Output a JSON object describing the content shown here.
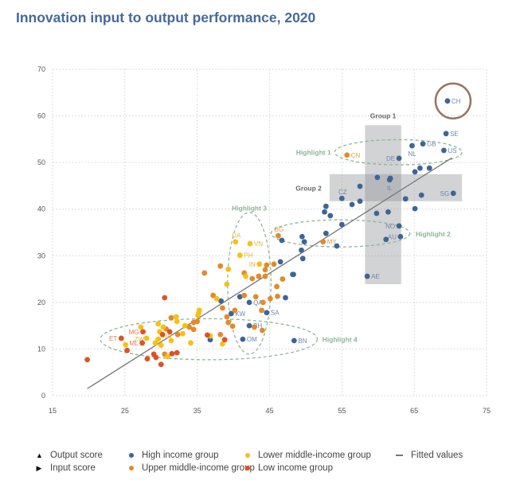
{
  "chart_data": {
    "type": "scatter",
    "title": "Innovation input to output performance, 2020",
    "xlabel": "",
    "ylabel": "",
    "xlim": [
      15,
      75
    ],
    "ylim": [
      0,
      70
    ],
    "x_ticks": [
      "15",
      "25",
      "35",
      "45",
      "55",
      "65",
      "75"
    ],
    "y_ticks": [
      "0",
      "10",
      "20",
      "30",
      "40",
      "50",
      "60",
      "70"
    ],
    "grid": true,
    "legend_placement": "bottom",
    "colors": {
      "high": "#3d6598",
      "upper": "#e38a2a",
      "lower": "#f6c015",
      "low": "#dc5326",
      "fit": "#777777",
      "highlight": "#8db697",
      "group": "#8e9096",
      "circle": "#9a7560"
    },
    "fitted_line": [
      [
        19.8,
        1.5
      ],
      [
        70.2,
        51.0
      ]
    ],
    "series": [
      {
        "name": "High income group",
        "key": "high",
        "points": [
          [
            69.6,
            63.2,
            "CH"
          ],
          [
            69.4,
            56.2,
            "SE"
          ],
          [
            66.2,
            54.0,
            "GB"
          ],
          [
            69.1,
            52.6,
            "US"
          ],
          [
            64.7,
            53.6,
            "NL"
          ],
          [
            62.9,
            50.9,
            "DE"
          ],
          [
            65.1,
            48.0
          ],
          [
            65.8,
            48.8
          ],
          [
            67.1,
            48.8
          ],
          [
            59.9,
            46.8
          ],
          [
            61.7,
            46.6
          ],
          [
            61.6,
            46.3,
            "IL"
          ],
          [
            57.5,
            44.9
          ],
          [
            55.0,
            42.3,
            "CZ"
          ],
          [
            56.4,
            41.0
          ],
          [
            57.5,
            41.7
          ],
          [
            63.8,
            42.2
          ],
          [
            66.0,
            43.0
          ],
          [
            70.4,
            43.4,
            "SG"
          ],
          [
            65.1,
            40.1
          ],
          [
            59.8,
            39.1
          ],
          [
            61.4,
            39.4
          ],
          [
            52.8,
            40.6
          ],
          [
            52.6,
            39.4
          ],
          [
            53.4,
            38.6
          ],
          [
            55.0,
            36.7
          ],
          [
            62.9,
            36.4,
            "NO"
          ],
          [
            63.1,
            34.1,
            "AU"
          ],
          [
            61.1,
            33.5
          ],
          [
            46.7,
            33.3
          ],
          [
            49.5,
            34.1
          ],
          [
            49.8,
            33.0
          ],
          [
            52.8,
            34.8
          ],
          [
            54.3,
            32.1
          ],
          [
            49.4,
            31.2
          ],
          [
            49.6,
            29.4
          ],
          [
            46.5,
            28.7
          ],
          [
            48.3,
            26.0
          ],
          [
            58.5,
            25.6,
            "AE"
          ],
          [
            48.2,
            26.0
          ],
          [
            38.3,
            20.3
          ],
          [
            40.9,
            21.2
          ],
          [
            47.2,
            21.0
          ],
          [
            42.2,
            20.0,
            "QA"
          ],
          [
            39.7,
            17.6,
            "KW"
          ],
          [
            44.6,
            17.8,
            "SA"
          ],
          [
            42.2,
            15.0,
            "BH"
          ],
          [
            41.3,
            12.1,
            "OM"
          ],
          [
            48.4,
            11.8,
            "BN"
          ],
          [
            36.8,
            12.0
          ]
        ]
      },
      {
        "name": "Upper middle-income group",
        "key": "upper",
        "points": [
          [
            55.7,
            51.6,
            "CN"
          ],
          [
            46.2,
            34.3,
            "BG"
          ],
          [
            52.4,
            33.0,
            "MY"
          ],
          [
            44.6,
            28.0
          ],
          [
            45.6,
            28.2
          ],
          [
            44.4,
            27.0
          ],
          [
            44.4,
            25.6
          ],
          [
            46.8,
            25.0
          ],
          [
            46.0,
            23.4
          ],
          [
            38.2,
            27.8
          ],
          [
            36.0,
            26.3
          ],
          [
            41.5,
            26.3
          ],
          [
            42.6,
            25.1
          ],
          [
            43.5,
            25.6
          ],
          [
            37.2,
            21.5
          ],
          [
            41.5,
            21.5
          ],
          [
            43.1,
            21.2
          ],
          [
            45.1,
            20.8
          ],
          [
            46.1,
            21.3
          ],
          [
            44.1,
            20.0
          ],
          [
            38.5,
            18.8
          ],
          [
            40.2,
            18.3
          ],
          [
            43.9,
            18.3
          ],
          [
            39.1,
            16.9
          ],
          [
            39.3,
            15.7
          ],
          [
            39.9,
            14.9
          ],
          [
            42.9,
            14.7
          ],
          [
            44.0,
            14.0
          ],
          [
            38.2,
            13.1
          ],
          [
            31.4,
            16.7
          ],
          [
            33.9,
            14.7
          ],
          [
            34.5,
            15.7
          ],
          [
            35.0,
            15.9
          ],
          [
            34.5,
            14.2
          ],
          [
            30.7,
            14.3
          ],
          [
            32.3,
            13.1
          ],
          [
            30.5,
            8.9
          ]
        ]
      },
      {
        "name": "Lower middle-income group",
        "key": "lower",
        "points": [
          [
            40.3,
            33.0,
            "UA"
          ],
          [
            42.3,
            32.6,
            "VN"
          ],
          [
            40.9,
            30.1,
            "PH"
          ],
          [
            43.6,
            28.2,
            "IN"
          ],
          [
            39.3,
            27.1
          ],
          [
            41.7,
            25.6
          ],
          [
            39.1,
            23.9
          ],
          [
            37.7,
            20.8
          ],
          [
            35.3,
            18.3
          ],
          [
            35.2,
            17.7
          ],
          [
            35.1,
            17.2
          ],
          [
            36.8,
            12.8
          ],
          [
            38.5,
            11.1
          ],
          [
            32.1,
            16.9
          ],
          [
            32.2,
            15.9
          ],
          [
            33.3,
            15.0
          ],
          [
            29.6,
            15.4
          ],
          [
            30.3,
            14.7
          ],
          [
            27.2,
            14.7
          ],
          [
            29.8,
            13.7
          ],
          [
            33.0,
            13.3
          ],
          [
            28.0,
            12.3,
            "ZW"
          ],
          [
            29.6,
            12.1,
            "MW"
          ],
          [
            25.1,
            10.9
          ],
          [
            29.2,
            11.3
          ],
          [
            30.0,
            10.8
          ],
          [
            31.4,
            11.8
          ],
          [
            34.1,
            11.3
          ],
          [
            30.9,
            8.4
          ]
        ]
      },
      {
        "name": "Low income group",
        "key": "low",
        "points": [
          [
            30.5,
            21.0
          ],
          [
            36.4,
            13.0
          ],
          [
            38.8,
            12.0
          ],
          [
            31.2,
            13.7
          ],
          [
            30.2,
            13.1
          ],
          [
            27.5,
            13.7,
            "MG"
          ],
          [
            24.5,
            12.3,
            "ET"
          ],
          [
            27.4,
            11.3,
            "ML"
          ],
          [
            25.3,
            9.7
          ],
          [
            29.0,
            8.9
          ],
          [
            29.3,
            8.2
          ],
          [
            28.1,
            7.9
          ],
          [
            31.5,
            9.0
          ],
          [
            32.2,
            9.2
          ],
          [
            30.0,
            6.7
          ],
          [
            19.8,
            7.7
          ]
        ]
      }
    ],
    "annotations": {
      "groups": [
        {
          "label": "Group 1",
          "x": [
            58.2,
            63.2
          ],
          "y": [
            23.9,
            58.0
          ]
        },
        {
          "label": "Group 2",
          "x": [
            53.3,
            71.6
          ],
          "y": [
            41.7,
            47.5
          ]
        }
      ],
      "highlights": [
        {
          "label": "Highlight 1",
          "cx": 62.8,
          "cy": 52.2,
          "rx": 8.8,
          "ry": 2.7
        },
        {
          "label": "Highlight 2",
          "cx": 54.8,
          "cy": 34.8,
          "rx": 9.6,
          "ry": 2.9
        },
        {
          "label": "Highlight 3",
          "cx": 42.2,
          "cy": 24.1,
          "rx": 3.0,
          "ry": 15.2
        },
        {
          "label": "Highlight 4",
          "cx": 36.6,
          "cy": 12.1,
          "rx": 15.0,
          "ry": 4.4
        }
      ],
      "circled": "CH"
    },
    "legend": [
      {
        "marker": "triangle-up",
        "label": "Output score"
      },
      {
        "marker": "triangle-right",
        "label": "Input score"
      },
      {
        "marker": "dot",
        "key": "high",
        "label": "High income group"
      },
      {
        "marker": "dot",
        "key": "upper",
        "label": "Upper middle-income group"
      },
      {
        "marker": "dot",
        "key": "lower",
        "label": "Lower middle-income group"
      },
      {
        "marker": "dot",
        "key": "low",
        "label": "Low income group"
      },
      {
        "marker": "line",
        "key": "fit",
        "label": "Fitted values"
      }
    ]
  }
}
